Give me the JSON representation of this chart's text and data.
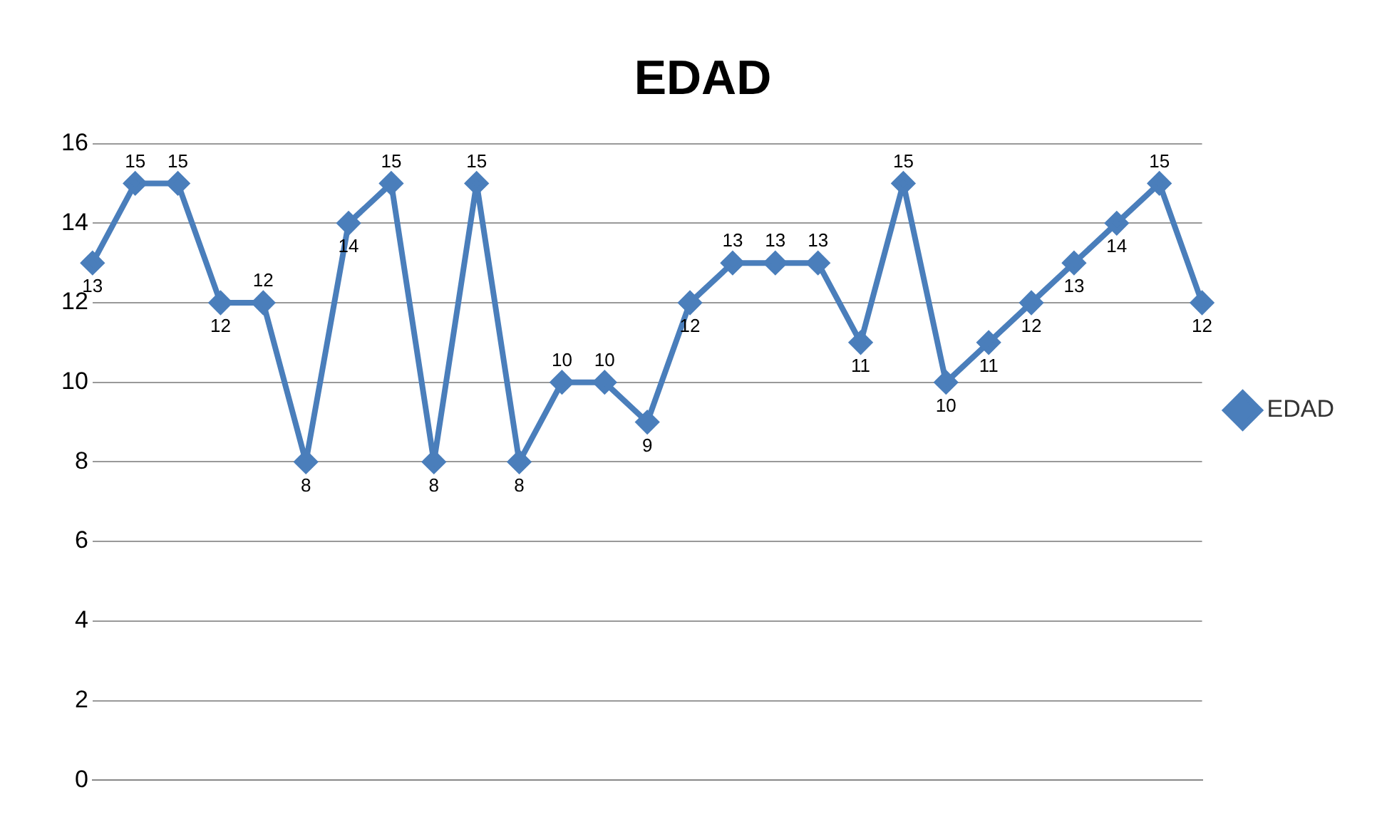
{
  "chart_data": {
    "type": "line",
    "title": "EDAD",
    "categories": [
      null,
      null,
      null,
      null,
      null,
      null,
      null,
      null,
      null,
      null,
      null,
      null,
      null,
      null,
      null,
      null,
      null,
      null,
      null,
      null,
      null,
      null,
      null,
      null,
      null,
      null,
      null
    ],
    "series": [
      {
        "name": "EDAD",
        "color": "#4a7ebb",
        "values": [
          13,
          15,
          15,
          12,
          12,
          8,
          14,
          15,
          8,
          15,
          8,
          10,
          10,
          9,
          12,
          13,
          13,
          13,
          11,
          15,
          10,
          11,
          12,
          13,
          14,
          15,
          12
        ]
      }
    ],
    "ylim": [
      0,
      16
    ],
    "yticks": [
      0,
      2,
      4,
      6,
      8,
      10,
      12,
      14,
      16
    ],
    "grid": "y",
    "legend": "right",
    "marker": "diamond",
    "line_style": "solid",
    "data_labels": true
  }
}
